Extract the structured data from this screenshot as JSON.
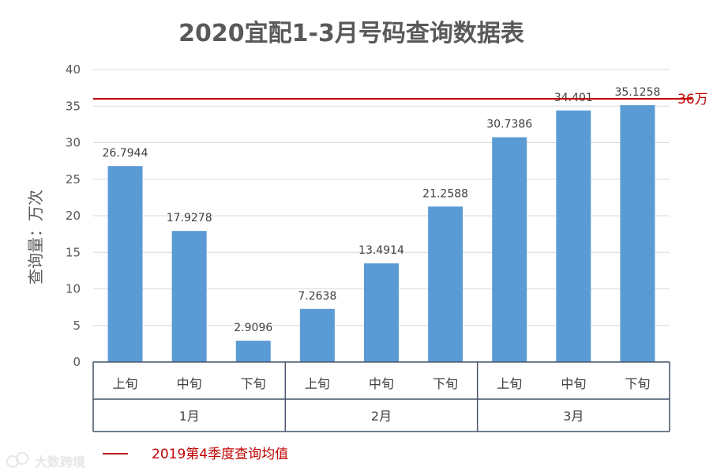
{
  "chart_data": {
    "type": "bar",
    "title": "2020宜配1-3月号码查询数据表",
    "ylabel": "查询量：万次",
    "xlabel": "",
    "ylim": [
      0,
      40
    ],
    "yticks": [
      0,
      5,
      10,
      15,
      20,
      25,
      30,
      35,
      40
    ],
    "categories": [
      "上旬",
      "中旬",
      "下旬",
      "上旬",
      "中旬",
      "下旬",
      "上旬",
      "中旬",
      "下旬"
    ],
    "values": [
      26.7944,
      17.9278,
      2.9096,
      7.2638,
      13.4914,
      21.2588,
      30.7386,
      34.401,
      35.1258
    ],
    "value_labels": [
      "26.7944",
      "17.9278",
      "2.9096",
      "7.2638",
      "13.4914",
      "21.2588",
      "30.7386",
      "34.401",
      "35.1258"
    ],
    "groups": [
      {
        "label": "1月",
        "start": 0,
        "count": 3
      },
      {
        "label": "2月",
        "start": 3,
        "count": 3
      },
      {
        "label": "3月",
        "start": 6,
        "count": 3
      }
    ],
    "bar_color": "#5b9bd5",
    "reference_line": {
      "value": 36,
      "label": "36万",
      "color": "#c00000"
    },
    "legend": [
      {
        "name": "2019第4季度查询均值",
        "color": "#c00000",
        "style": "line"
      }
    ],
    "grid": true
  },
  "watermark": "大数跨境"
}
